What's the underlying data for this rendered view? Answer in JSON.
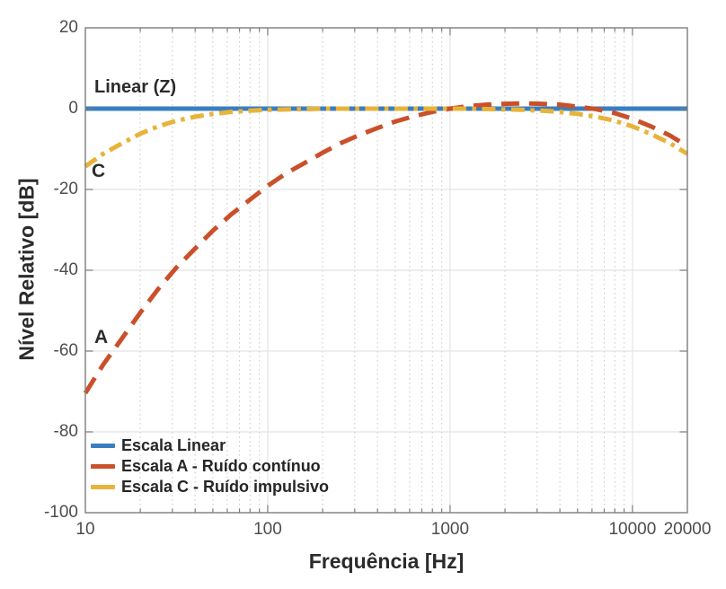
{
  "chart_data": {
    "type": "line",
    "title": "",
    "xlabel": "Frequência [Hz]",
    "ylabel": "Nível Relativo [dB]",
    "x_scale": "log",
    "xlim": [
      10,
      20000
    ],
    "ylim": [
      -100,
      20
    ],
    "grid": true,
    "legend_position": "bottom-left",
    "xtick_values": [
      10,
      100,
      1000,
      10000,
      20000
    ],
    "xtick_labels": [
      "10",
      "100",
      "1000",
      "10000",
      "20000"
    ],
    "ytick_values": [
      20,
      0,
      -20,
      -40,
      -60,
      -80,
      -100
    ],
    "ytick_labels": [
      "20",
      "0",
      "-20",
      "-40",
      "-60",
      "-80",
      "-100"
    ],
    "x": [
      10,
      12.5,
      16,
      20,
      25,
      31.5,
      40,
      50,
      63,
      80,
      100,
      125,
      160,
      200,
      250,
      315,
      400,
      500,
      630,
      800,
      1000,
      1250,
      1600,
      2000,
      2500,
      3150,
      4000,
      5000,
      6300,
      8000,
      10000,
      12500,
      16000,
      20000
    ],
    "series": [
      {
        "name": "Escala Linear",
        "color": "#3a7ebf",
        "style": "solid",
        "values": [
          0,
          0,
          0,
          0,
          0,
          0,
          0,
          0,
          0,
          0,
          0,
          0,
          0,
          0,
          0,
          0,
          0,
          0,
          0,
          0,
          0,
          0,
          0,
          0,
          0,
          0,
          0,
          0,
          0,
          0,
          0,
          0,
          0,
          0
        ]
      },
      {
        "name": "Escala A - Ruído contínuo",
        "color": "#c9502a",
        "style": "dashed",
        "values": [
          -70.4,
          -63.4,
          -56.7,
          -50.5,
          -44.7,
          -39.4,
          -34.6,
          -30.2,
          -26.2,
          -22.5,
          -19.1,
          -16.1,
          -13.4,
          -10.9,
          -8.6,
          -6.6,
          -4.8,
          -3.2,
          -1.9,
          -0.8,
          0,
          0.6,
          1.0,
          1.2,
          1.3,
          1.2,
          1.0,
          0.5,
          -0.1,
          -1.1,
          -2.5,
          -4.3,
          -6.6,
          -9.3
        ]
      },
      {
        "name": "Escala C - Ruído impulsivo",
        "color": "#e8b33a",
        "style": "dashdot",
        "values": [
          -14.3,
          -11.2,
          -8.5,
          -6.2,
          -4.4,
          -3.0,
          -2.0,
          -1.3,
          -0.8,
          -0.5,
          -0.3,
          -0.2,
          -0.1,
          0,
          0,
          0,
          0,
          0,
          0,
          0,
          0,
          0,
          -0.1,
          -0.2,
          -0.3,
          -0.5,
          -0.8,
          -1.3,
          -2.0,
          -3.0,
          -4.4,
          -6.2,
          -8.5,
          -11.2
        ]
      }
    ],
    "annotations": [
      {
        "text": "Linear (Z)"
      },
      {
        "text": "A"
      },
      {
        "text": "C"
      }
    ],
    "colors": {
      "grid_major": "#e4e4e4",
      "grid_minor": "#cfcfcf",
      "axis_box": "#7d7d7d",
      "tick_text": "#4d4d4d",
      "label_text": "#2b2b2b"
    }
  }
}
